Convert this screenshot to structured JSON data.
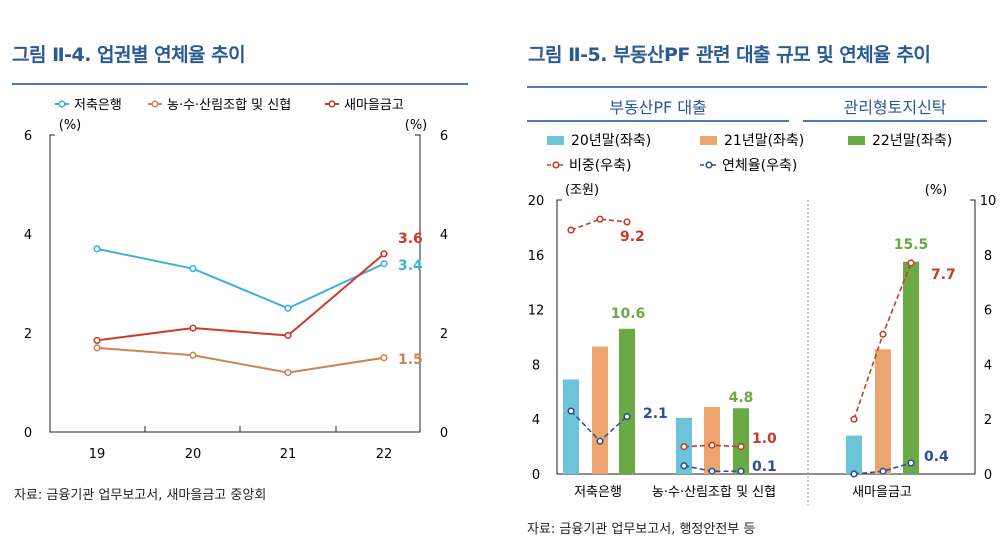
{
  "left": {
    "title": "그림 Ⅱ-4. 업권별 연체율 추이",
    "source": "자료: 금융기관 업무보고서, 새마을금고 중앙회",
    "chart_data": {
      "type": "line",
      "categories": [
        "19",
        "20",
        "21",
        "22"
      ],
      "ylabel_left": "(%)",
      "ylabel_right": "(%)",
      "ylim": [
        0,
        6
      ],
      "yticks": [
        0,
        2,
        4,
        6
      ],
      "legend_position": "top",
      "series": [
        {
          "name": "저축은행",
          "color": "#3fb0d8",
          "values": [
            3.7,
            3.3,
            2.5,
            3.4
          ],
          "end_label": "3.4"
        },
        {
          "name": "농·수·산림조합 및 신협",
          "color": "#c98652",
          "values": [
            1.7,
            1.55,
            1.2,
            1.5
          ],
          "end_label": "1.5"
        },
        {
          "name": "새마을금고",
          "color": "#cc3b2a",
          "values": [
            1.85,
            2.1,
            1.95,
            3.6
          ],
          "end_label": "3.6"
        }
      ]
    }
  },
  "right": {
    "title": "그림 Ⅱ-5. 부동산PF 관련 대출 규모 및 연체율 추이",
    "section_left": "부동산PF 대출",
    "section_right": "관리형토지신탁",
    "source": "자료: 금융기관 업무보고서, 행정안전부 등",
    "chart_data": {
      "type": "bar+line",
      "categories": [
        "저축은행",
        "농·수·산림조합 및 신협",
        "새마을금고"
      ],
      "ylabel_left": "(조원)",
      "ylabel_right": "(%)",
      "ylim_left": [
        0,
        20
      ],
      "yticks_left": [
        0,
        4,
        8,
        12,
        16,
        20
      ],
      "ylim_right": [
        0,
        10
      ],
      "yticks_right": [
        0,
        2,
        4,
        6,
        8,
        10
      ],
      "bar_series": [
        {
          "name": "20년말(좌축)",
          "color": "#6cc4d8",
          "values": [
            6.9,
            4.1,
            2.8
          ]
        },
        {
          "name": "21년말(좌축)",
          "color": "#eda56f",
          "values": [
            9.3,
            4.9,
            9.1
          ]
        },
        {
          "name": "22년말(좌축)",
          "color": "#6aaa44",
          "values": [
            10.6,
            4.8,
            15.5
          ],
          "labels": [
            "10.6",
            "4.8",
            "15.5"
          ]
        }
      ],
      "line_series": [
        {
          "name": "비중(우축)",
          "color": "#cc3b2a",
          "values": [
            [
              8.9,
              9.3,
              9.2
            ],
            [
              1.0,
              1.05,
              1.0
            ],
            [
              2.0,
              5.1,
              7.7
            ]
          ],
          "labels": [
            "9.2",
            "1.0",
            "7.7"
          ]
        },
        {
          "name": "연체율(우축)",
          "color": "#2d4f9a",
          "values": [
            [
              2.3,
              1.2,
              2.1
            ],
            [
              0.3,
              0.1,
              0.1
            ],
            [
              0.0,
              0.1,
              0.4
            ]
          ],
          "labels": [
            "2.1",
            "0.1",
            "0.4"
          ]
        }
      ]
    }
  }
}
